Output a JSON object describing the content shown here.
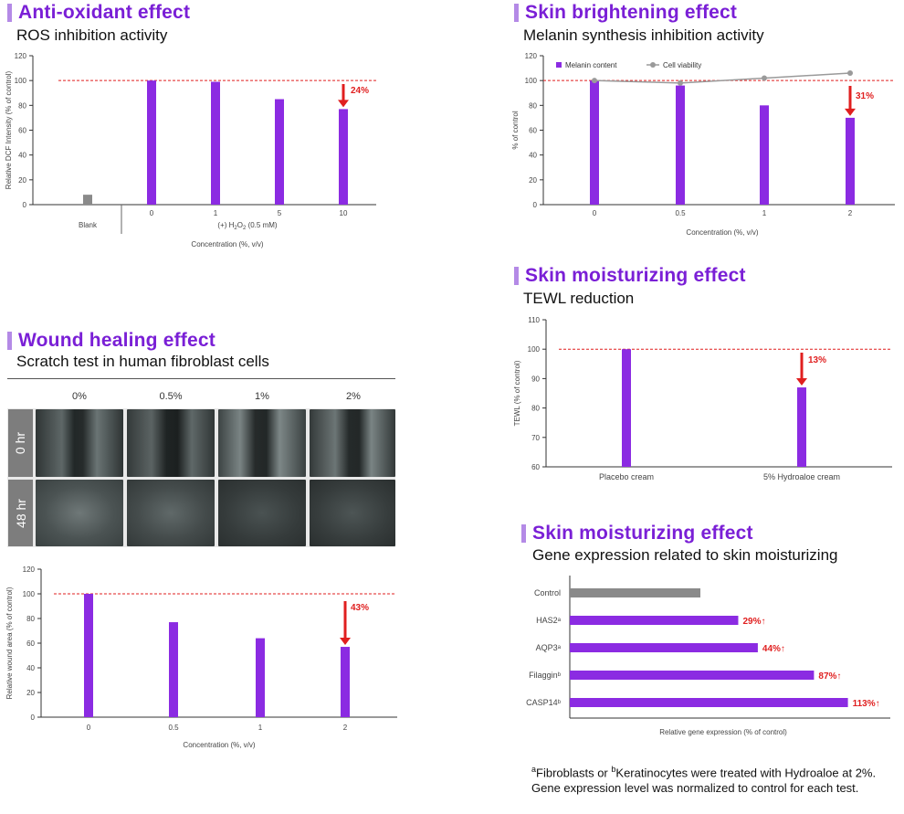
{
  "colors": {
    "purple": "#8b2be2",
    "title": "#7a1fd6",
    "gray": "#8a8a8a",
    "red": "#e01f1f",
    "viability": "#9a9a9a"
  },
  "antioxidant": {
    "title": "Anti-oxidant effect",
    "subtitle": "ROS inhibition activity",
    "ylabel": "Relative DCF Intensity (% of control)",
    "xlabel": "Concentration (%, v/v)",
    "group_label_prefix": "(+) H",
    "group_label_sub": "2",
    "group_label_mid": "O",
    "group_label_sub2": "2",
    "group_label_suffix": " (0.5 mM)",
    "blank_label": "Blank",
    "annotation": "24%"
  },
  "brightening": {
    "title": "Skin brightening effect",
    "subtitle": "Melanin synthesis inhibition activity",
    "ylabel": "% of control",
    "xlabel": "Concentration (%, v/v)",
    "legend_bar": "Melanin content",
    "legend_line": "Cell viability",
    "annotation": "31%"
  },
  "wound": {
    "title": "Wound healing effect",
    "subtitle": "Scratch test in human fibroblast cells",
    "columns": [
      "0%",
      "0.5%",
      "1%",
      "2%"
    ],
    "rows": [
      "0 hr",
      "48 hr"
    ],
    "ylabel": "Relative wound area (% of control)",
    "xlabel": "Concentration (%, v/v)",
    "annotation": "43%"
  },
  "tewl": {
    "title": "Skin moisturizing effect",
    "subtitle": "TEWL reduction",
    "ylabel": "TEWL (% of control)",
    "annotation": "13%"
  },
  "gene": {
    "title": "Skin moisturizing effect",
    "subtitle": "Gene expression related to skin moisturizing",
    "xlabel": "Relative gene expression (% of control)",
    "annotations": [
      "29%↑",
      "44%↑",
      "87%↑",
      "113%↑"
    ]
  },
  "footnote": {
    "a_mark": "a",
    "a_text": "Fibroblasts or ",
    "b_mark": "b",
    "b_text": "Keratinocytes were treated with Hydroaloe at 2%.",
    "line2": "Gene expression level was normalized to control for each test."
  },
  "chart_data": [
    {
      "type": "bar",
      "title": "Anti-oxidant effect",
      "categories": [
        "Blank",
        "0",
        "1",
        "5",
        "10"
      ],
      "values": [
        8,
        100,
        99,
        85,
        77
      ],
      "ylabel": "Relative DCF Intensity (% of control)",
      "xlabel": "Concentration (%, v/v)",
      "ylim": [
        0,
        120
      ],
      "yticks": [
        0,
        20,
        40,
        60,
        80,
        100,
        120
      ],
      "reference_line": 100
    },
    {
      "type": "bar",
      "title": "Skin brightening effect",
      "categories": [
        "0",
        "0.5",
        "1",
        "2"
      ],
      "series": [
        {
          "name": "Melanin content",
          "type": "bar",
          "values": [
            100,
            96,
            80,
            70
          ]
        },
        {
          "name": "Cell viability",
          "type": "line",
          "values": [
            100,
            98,
            102,
            106
          ]
        }
      ],
      "ylabel": "% of control",
      "xlabel": "Concentration (%, v/v)",
      "ylim": [
        0,
        120
      ],
      "yticks": [
        0,
        20,
        40,
        60,
        80,
        100,
        120
      ],
      "reference_line": 100,
      "legend": "top-left"
    },
    {
      "type": "bar",
      "title": "Wound healing effect",
      "categories": [
        "0",
        "0.5",
        "1",
        "2"
      ],
      "values": [
        100,
        77,
        64,
        57
      ],
      "ylabel": "Relative wound area (% of control)",
      "xlabel": "Concentration (%, v/v)",
      "ylim": [
        0,
        120
      ],
      "yticks": [
        0,
        20,
        40,
        60,
        80,
        100,
        120
      ],
      "reference_line": 100
    },
    {
      "type": "bar",
      "title": "Skin moisturizing effect",
      "categories": [
        "Placebo cream",
        "5% Hydroaloe cream"
      ],
      "values": [
        100,
        87
      ],
      "ylabel": "TEWL (% of control)",
      "ylim": [
        60,
        110
      ],
      "yticks": [
        60,
        70,
        80,
        90,
        100,
        110
      ],
      "reference_line": 100
    },
    {
      "type": "bar",
      "orientation": "horizontal",
      "title": "Skin moisturizing effect",
      "categories": [
        "Control",
        "HAS2ᵃ",
        "AQP3ᵃ",
        "Filagginᵇ",
        "CASP14ᵇ"
      ],
      "values": [
        100,
        129,
        144,
        187,
        213
      ],
      "xlabel": "Relative gene expression (% of control)"
    }
  ]
}
